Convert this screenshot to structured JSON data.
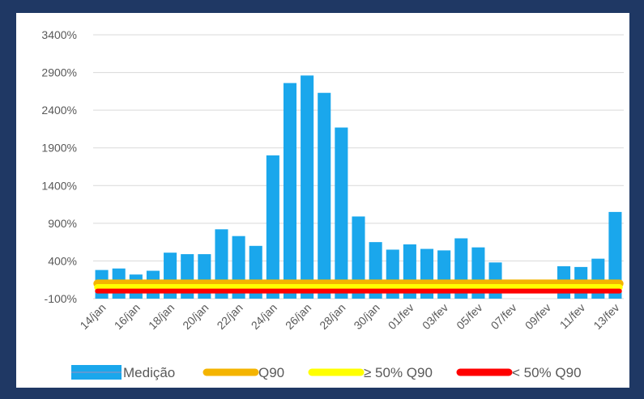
{
  "chart_data": {
    "type": "bar",
    "categories": [
      "14/jan",
      "15/jan",
      "16/jan",
      "17/jan",
      "18/jan",
      "19/jan",
      "20/jan",
      "21/jan",
      "22/jan",
      "23/jan",
      "24/jan",
      "25/jan",
      "26/jan",
      "27/jan",
      "28/jan",
      "29/jan",
      "30/jan",
      "31/jan",
      "01/fev",
      "02/fev",
      "03/fev",
      "04/fev",
      "05/fev",
      "06/fev",
      "07/fev",
      "08/fev",
      "09/fev",
      "10/fev",
      "11/fev",
      "12/fev",
      "13/fev"
    ],
    "x_tick_labels": [
      "14/jan",
      "16/jan",
      "18/jan",
      "20/jan",
      "22/jan",
      "24/jan",
      "26/jan",
      "28/jan",
      "30/jan",
      "01/fev",
      "03/fev",
      "05/fev",
      "07/fev",
      "09/fev",
      "11/fev",
      "13/fev"
    ],
    "series": [
      {
        "name": "Medição",
        "type": "bar",
        "color": "#1aa7ec",
        "values": [
          280,
          300,
          220,
          270,
          510,
          490,
          490,
          820,
          730,
          600,
          1800,
          2760,
          2860,
          2630,
          2170,
          990,
          650,
          550,
          620,
          560,
          540,
          700,
          580,
          380,
          null,
          null,
          null,
          330,
          320,
          430,
          1050
        ]
      },
      {
        "name": "Q90",
        "type": "line",
        "color": "#f4b400",
        "value": 100
      },
      {
        "name": "≥ 50% Q90",
        "type": "line",
        "color": "#ffff00",
        "value": 50
      },
      {
        "name": "< 50% Q90",
        "type": "line",
        "color": "#ff0000",
        "value": 0
      }
    ],
    "y_ticks": [
      "-100%",
      "400%",
      "900%",
      "1400%",
      "1900%",
      "2400%",
      "2900%",
      "3400%"
    ],
    "y_tick_values": [
      -100,
      400,
      900,
      1400,
      1900,
      2400,
      2900,
      3400
    ],
    "ylim": [
      -100,
      3400
    ],
    "grid": true,
    "legend_position": "bottom"
  }
}
